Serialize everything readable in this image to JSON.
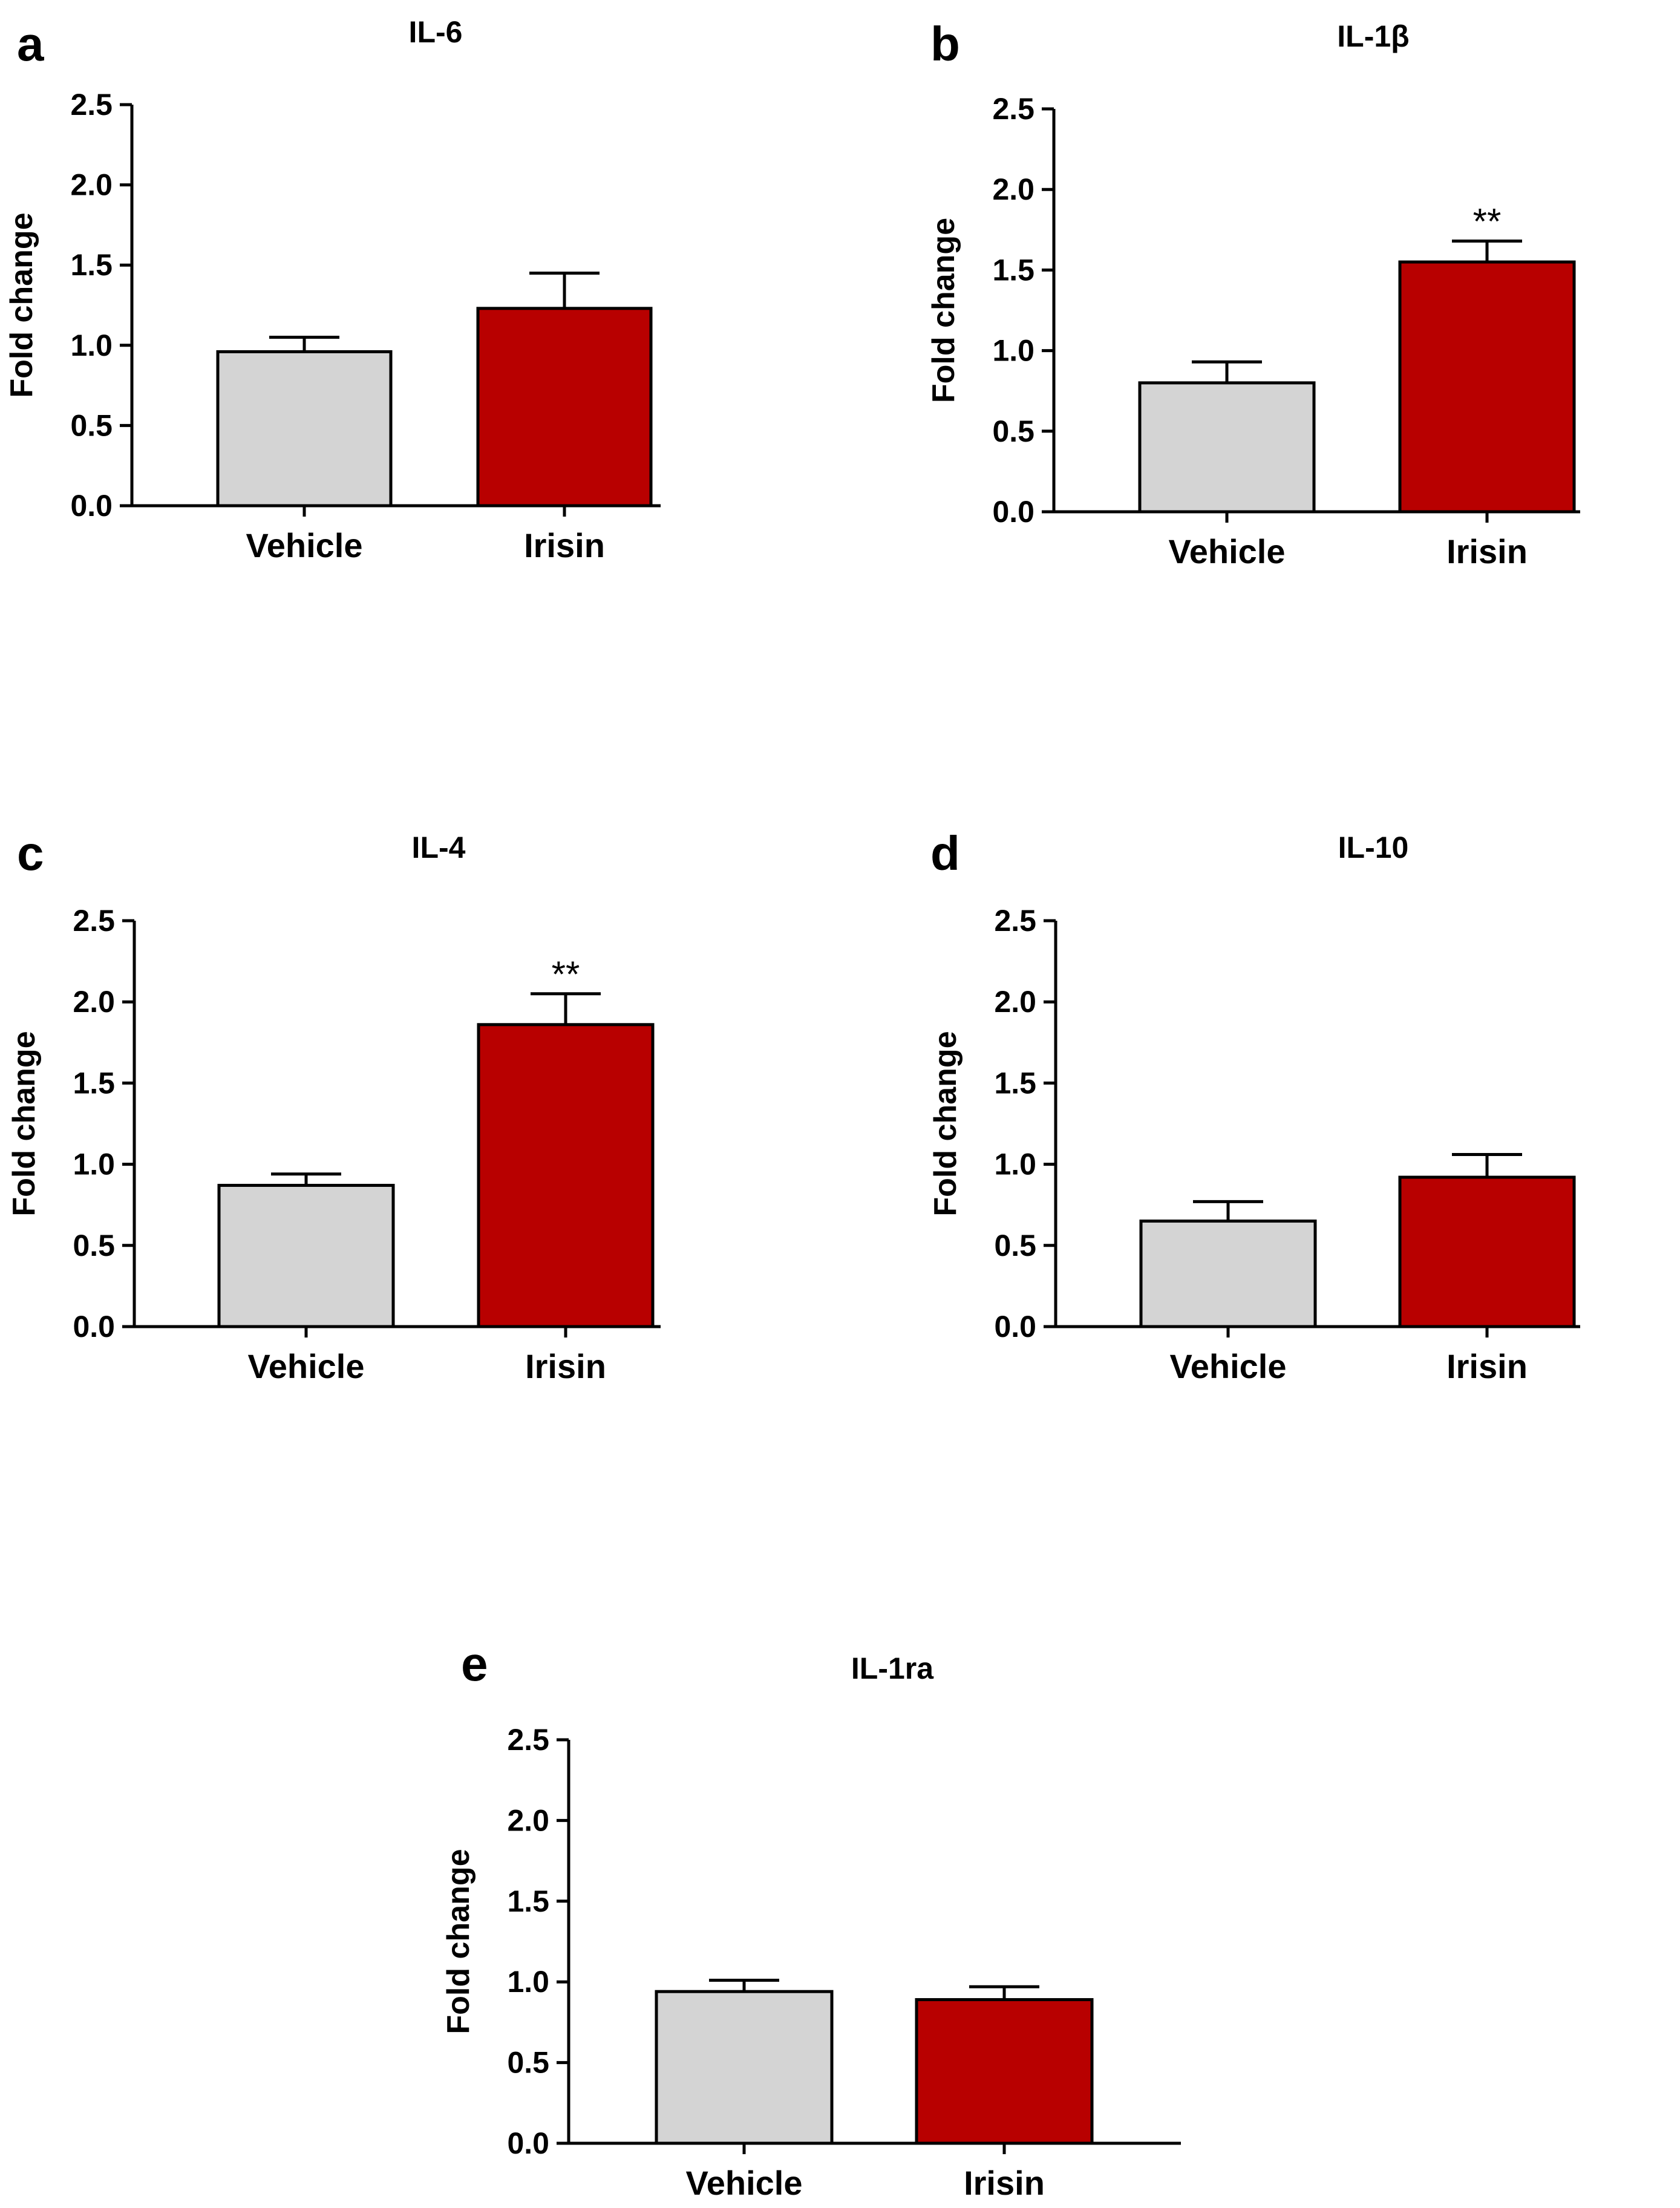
{
  "colors": {
    "vehicle_fill": "#d4d4d4",
    "irisin_fill": "#b80000",
    "axis": "#000000"
  },
  "chart_data": [
    {
      "panel": "a",
      "type": "bar",
      "title": "IL-6",
      "ylabel": "Fold change",
      "xlabel": "",
      "ylim": [
        0,
        2.5
      ],
      "yticks": [
        "0.0",
        "0.5",
        "1.0",
        "1.5",
        "2.0",
        "2.5"
      ],
      "categories": [
        "Vehicle",
        "Irisin"
      ],
      "values": [
        0.96,
        1.23
      ],
      "errors": [
        0.09,
        0.22
      ],
      "significance": [
        "",
        ""
      ]
    },
    {
      "panel": "b",
      "type": "bar",
      "title": "IL-1β",
      "ylabel": "Fold change",
      "xlabel": "",
      "ylim": [
        0,
        2.5
      ],
      "yticks": [
        "0.0",
        "0.5",
        "1.0",
        "1.5",
        "2.0",
        "2.5"
      ],
      "categories": [
        "Vehicle",
        "Irisin"
      ],
      "values": [
        0.8,
        1.55
      ],
      "errors": [
        0.13,
        0.13
      ],
      "significance": [
        "",
        "**"
      ]
    },
    {
      "panel": "c",
      "type": "bar",
      "title": "IL-4",
      "ylabel": "Fold change",
      "xlabel": "",
      "ylim": [
        0,
        2.5
      ],
      "yticks": [
        "0.0",
        "0.5",
        "1.0",
        "1.5",
        "2.0",
        "2.5"
      ],
      "categories": [
        "Vehicle",
        "Irisin"
      ],
      "values": [
        0.87,
        1.86
      ],
      "errors": [
        0.07,
        0.19
      ],
      "significance": [
        "",
        "**"
      ]
    },
    {
      "panel": "d",
      "type": "bar",
      "title": "IL-10",
      "ylabel": "Fold change",
      "xlabel": "",
      "ylim": [
        0,
        2.5
      ],
      "yticks": [
        "0.0",
        "0.5",
        "1.0",
        "1.5",
        "2.0",
        "2.5"
      ],
      "categories": [
        "Vehicle",
        "Irisin"
      ],
      "values": [
        0.65,
        0.92
      ],
      "errors": [
        0.12,
        0.14
      ],
      "significance": [
        "",
        ""
      ]
    },
    {
      "panel": "e",
      "type": "bar",
      "title": "IL-1ra",
      "ylabel": "Fold change",
      "xlabel": "",
      "ylim": [
        0,
        2.5
      ],
      "yticks": [
        "0.0",
        "0.5",
        "1.0",
        "1.5",
        "2.0",
        "2.5"
      ],
      "categories": [
        "Vehicle",
        "Irisin"
      ],
      "values": [
        0.94,
        0.89
      ],
      "errors": [
        0.07,
        0.08
      ],
      "significance": [
        "",
        ""
      ]
    }
  ]
}
